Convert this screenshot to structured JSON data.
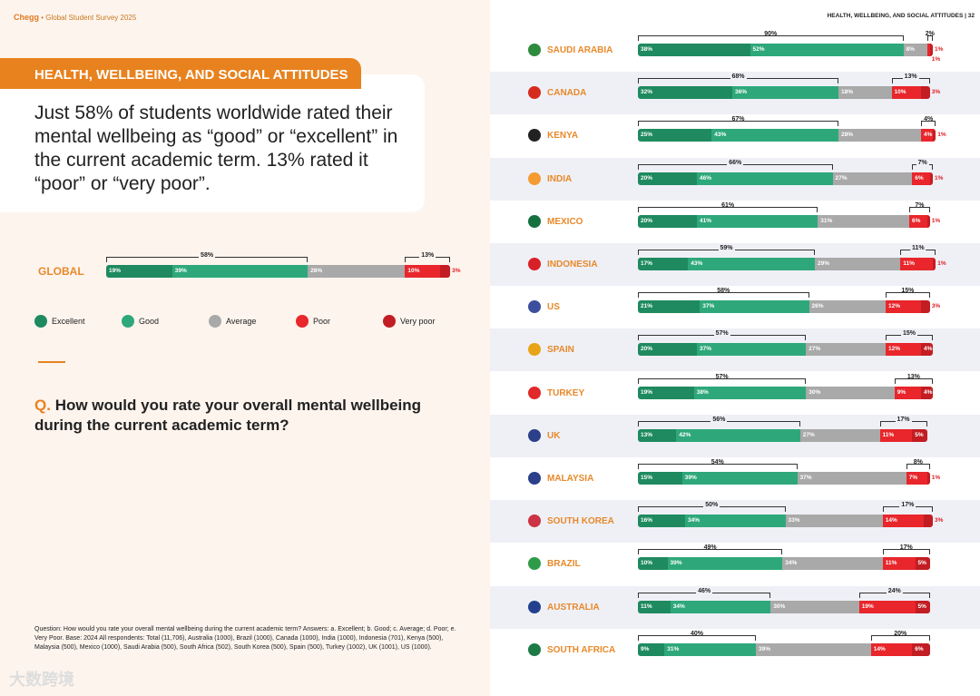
{
  "left": {
    "brand": "Chegg",
    "subtitle": "Global Student Survey 2025",
    "section": "HEALTH, WELLBEING, AND SOCIAL ATTITUDES",
    "headline": "Just 58% of students worldwide rated their mental wellbeing as “good” or “excellent” in the current academic term. 13% rated it “poor” or “very poor”.",
    "q_mark": "Q.",
    "question": "How would you rate your overall mental wellbeing during the current academic term?",
    "footnote": "Question: How would you rate your overall mental wellbeing during the current academic term? Answers: a. Excellent; b. Good; c. Average; d. Poor; e. Very Poor. Base: 2024 All respondents: Total (11,706), Australia (1000), Brazil (1000), Canada (1000), India (1000), Indonesia (701), Kenya (500), Malaysia (500), Mexico (1000), Saudi Arabia (500), South Africa (502), South Korea (500), Spain (500), Turkey (1002), UK (1001), US (1000).",
    "watermark": "大数跨境"
  },
  "right": {
    "header": "HEALTH, WELLBEING, AND SOCIAL ATTITUDES | 32"
  },
  "colors": {
    "excellent": "#1f8a5f",
    "good": "#2ea87b",
    "average": "#a9a9a9",
    "poor": "#e8262b",
    "very_poor": "#c21d23",
    "accent": "#e8821e"
  },
  "chart_data": {
    "type": "bar",
    "stacked": true,
    "unit": "%",
    "legend": [
      "Excellent",
      "Good",
      "Average",
      "Poor",
      "Very poor"
    ],
    "global": {
      "label": "GLOBAL",
      "values": [
        19,
        39,
        28,
        10,
        3
      ],
      "good_total": 58,
      "poor_total": 13
    },
    "countries": [
      {
        "name": "SAUDI ARABIA",
        "flag": "#2e8b3e",
        "values": [
          38,
          52,
          8,
          1,
          1
        ],
        "good_total": 90,
        "poor_total": 2
      },
      {
        "name": "CANADA",
        "flag": "#d52b1e",
        "values": [
          32,
          36,
          18,
          10,
          3
        ],
        "good_total": 68,
        "poor_total": 13
      },
      {
        "name": "KENYA",
        "flag": "#222222",
        "values": [
          25,
          43,
          28,
          4,
          1
        ],
        "good_total": 67,
        "poor_total": 4
      },
      {
        "name": "INDIA",
        "flag": "#f49b33",
        "values": [
          20,
          46,
          27,
          6,
          1
        ],
        "good_total": 66,
        "poor_total": 7
      },
      {
        "name": "MEXICO",
        "flag": "#16703f",
        "values": [
          20,
          41,
          31,
          6,
          1
        ],
        "good_total": 61,
        "poor_total": 7
      },
      {
        "name": "INDONESIA",
        "flag": "#d82027",
        "values": [
          17,
          43,
          29,
          11,
          1
        ],
        "good_total": 59,
        "poor_total": 11
      },
      {
        "name": "US",
        "flag": "#3c4f9e",
        "values": [
          21,
          37,
          26,
          12,
          3
        ],
        "good_total": 58,
        "poor_total": 15
      },
      {
        "name": "SPAIN",
        "flag": "#e8a417",
        "values": [
          20,
          37,
          27,
          12,
          4
        ],
        "good_total": 57,
        "poor_total": 15
      },
      {
        "name": "TURKEY",
        "flag": "#e02a2a",
        "values": [
          19,
          38,
          30,
          9,
          4
        ],
        "good_total": 57,
        "poor_total": 13
      },
      {
        "name": "UK",
        "flag": "#2b3f8a",
        "values": [
          13,
          42,
          27,
          11,
          5
        ],
        "good_total": 56,
        "poor_total": 17
      },
      {
        "name": "MALAYSIA",
        "flag": "#2b3f8a",
        "values": [
          15,
          39,
          37,
          7,
          1
        ],
        "good_total": 54,
        "poor_total": 8
      },
      {
        "name": "SOUTH KOREA",
        "flag": "#cc3344",
        "values": [
          16,
          34,
          33,
          14,
          3
        ],
        "good_total": 50,
        "poor_total": 17
      },
      {
        "name": "BRAZIL",
        "flag": "#2f9b48",
        "values": [
          10,
          39,
          34,
          11,
          5
        ],
        "good_total": 49,
        "poor_total": 17
      },
      {
        "name": "AUSTRALIA",
        "flag": "#23408e",
        "values": [
          11,
          34,
          30,
          19,
          5
        ],
        "good_total": 46,
        "poor_total": 24
      },
      {
        "name": "SOUTH AFRICA",
        "flag": "#1d7a45",
        "values": [
          9,
          31,
          39,
          14,
          6
        ],
        "good_total": 40,
        "poor_total": 20
      }
    ]
  }
}
